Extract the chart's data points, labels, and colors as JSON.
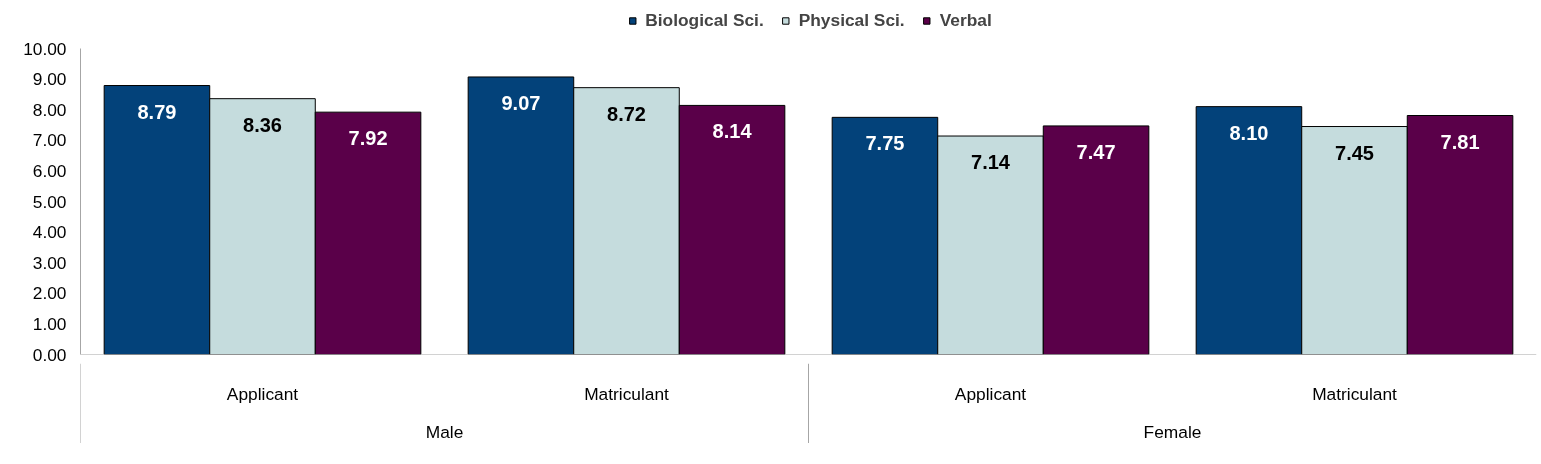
{
  "chart_data": {
    "type": "bar",
    "categories": [
      "Applicant",
      "Matriculant",
      "Applicant",
      "Matriculant"
    ],
    "annotations": [
      "Male",
      "Female"
    ],
    "series": [
      {
        "name": "Biological Sci.",
        "color": "#03427a",
        "values": [
          8.79,
          9.07,
          7.75,
          8.1
        ],
        "value_labels": [
          "8.79",
          "9.07",
          "7.75",
          "8.10"
        ]
      },
      {
        "name": "Physical Sci.",
        "color": "#c5dcdd",
        "values": [
          8.36,
          8.72,
          7.14,
          7.45
        ],
        "value_labels": [
          "8.36",
          "8.72",
          "7.14",
          "7.45"
        ]
      },
      {
        "name": "Verbal",
        "color": "#5a0049",
        "values": [
          7.92,
          8.14,
          7.47,
          7.81
        ],
        "value_labels": [
          "7.92",
          "8.14",
          "7.47",
          "7.81"
        ]
      }
    ],
    "ylim": [
      0,
      10
    ],
    "yticks": [
      {
        "value": 0,
        "label": "0.00"
      },
      {
        "value": 1,
        "label": "1.00"
      },
      {
        "value": 2,
        "label": "2.00"
      },
      {
        "value": 3,
        "label": "3.00"
      },
      {
        "value": 4,
        "label": "4.00"
      },
      {
        "value": 5,
        "label": "5.00"
      },
      {
        "value": 6,
        "label": "6.00"
      },
      {
        "value": 7,
        "label": "7.00"
      },
      {
        "value": 8,
        "label": "8.00"
      },
      {
        "value": 9,
        "label": "9.00"
      },
      {
        "value": 10,
        "label": "10.00"
      }
    ],
    "legend": "top"
  }
}
